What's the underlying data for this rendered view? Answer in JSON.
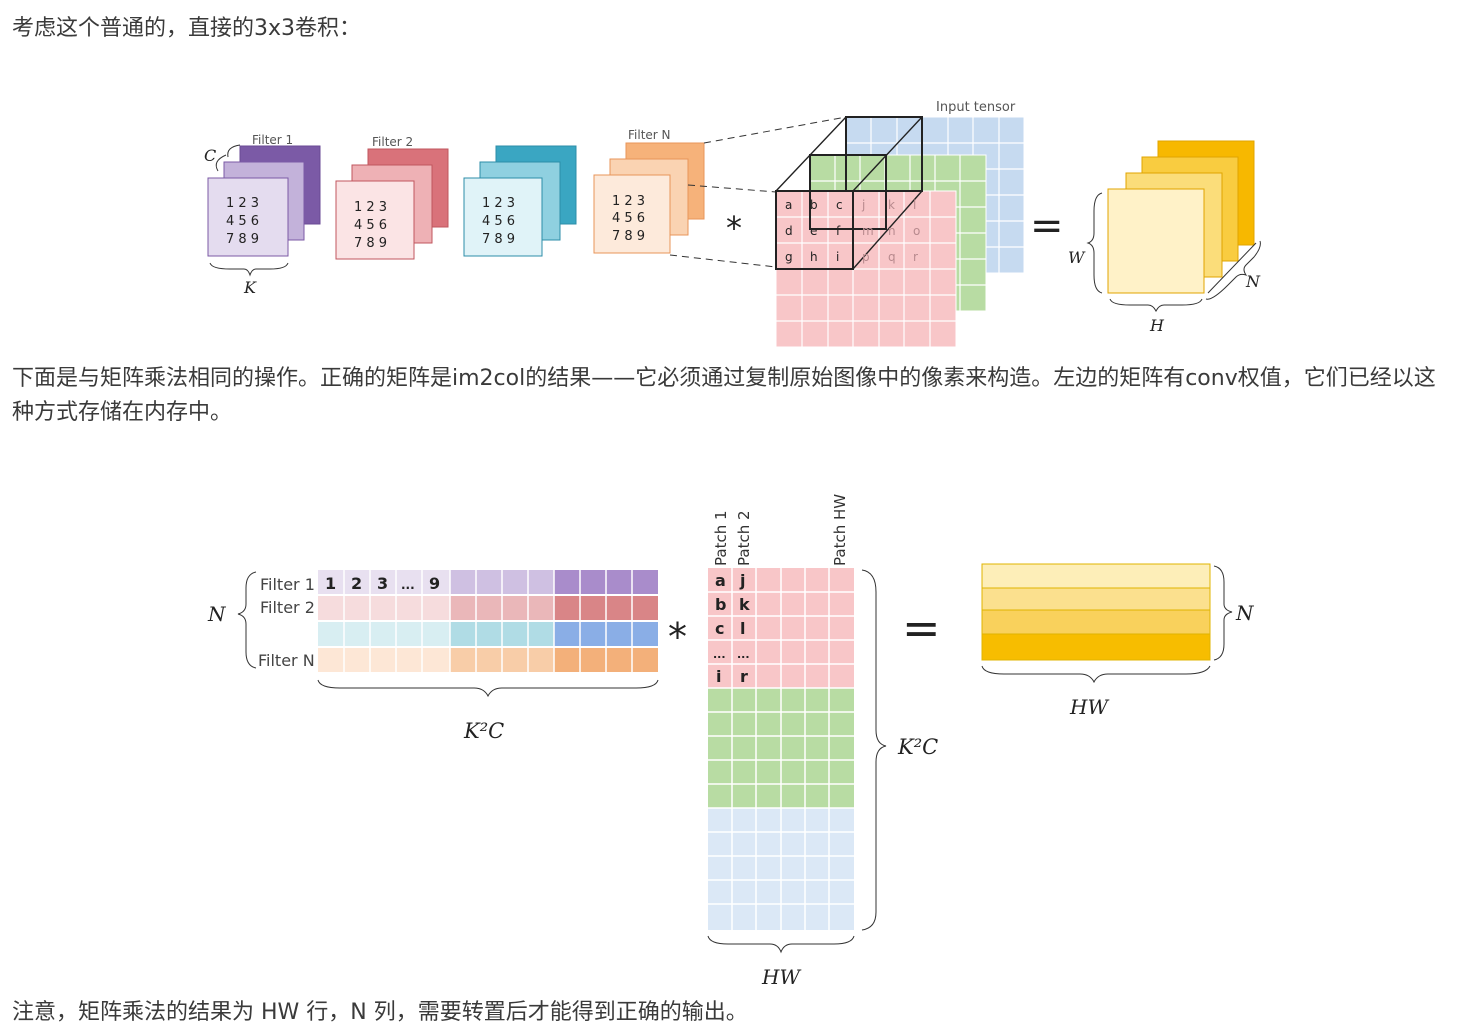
{
  "paragraphs": {
    "p1": "考虑这个普通的，直接的3x3卷积：",
    "p2": "下面是与矩阵乘法相同的操作。正确的矩阵是im2col的结果——它必须通过复制原始图像中的像素来构造。左边的矩阵有conv权值，它们已经以这种方式存储在内存中。",
    "p3": "注意，矩阵乘法的结果为 HW 行，N 列，需要转置后才能得到正确的输出。"
  },
  "figure1": {
    "filter_labels": [
      "Filter 1",
      "Filter 2",
      "Filter N"
    ],
    "filter_digits": [
      "1 2 3",
      "4 5 6",
      "7 8 9"
    ],
    "input_label": "Input tensor",
    "patch_letters": [
      [
        "a",
        "b",
        "c",
        "j",
        "k",
        "l"
      ],
      [
        "d",
        "e",
        "f",
        "m",
        "n",
        "o"
      ],
      [
        "g",
        "h",
        "i",
        "p",
        "q",
        "r"
      ]
    ],
    "sym_C": "C",
    "sym_K": "K",
    "sym_W": "W",
    "sym_H": "H",
    "sym_N": "N",
    "conv_op": "*",
    "equals": "="
  },
  "figure2": {
    "N_label": "N",
    "row_labels": [
      "Filter 1",
      "Filter 2",
      "Filter N"
    ],
    "first_row_values": [
      "1",
      "2",
      "3",
      "...",
      "9"
    ],
    "K2C_label": "K²C",
    "patch_headers": [
      "Patch 1",
      "Patch 2",
      "Patch HW"
    ],
    "patch_col1": [
      "a",
      "b",
      "c",
      "...",
      "i"
    ],
    "patch_col2": [
      "j",
      "k",
      "l",
      "...",
      "r"
    ],
    "HW_label": "HW",
    "conv_op": "*",
    "equals": "="
  }
}
